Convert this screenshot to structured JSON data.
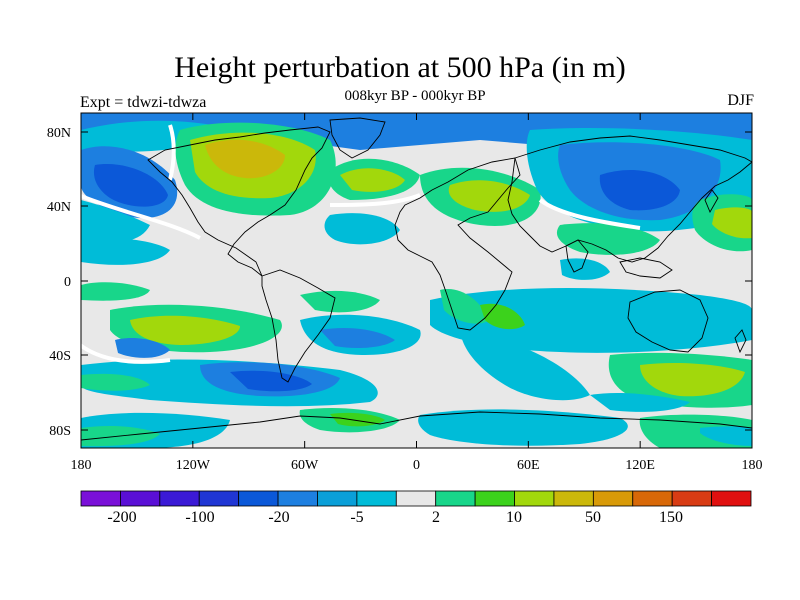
{
  "figure": {
    "title": "Height perturbation at 500 hPa (in m)",
    "subtitle": "008kyr BP - 000kyr BP",
    "left_label": "Expt = tdwzi-tdwza",
    "right_label": "DJF"
  },
  "axes": {
    "lat_labels": [
      "80N",
      "40N",
      "0",
      "40S",
      "80S"
    ],
    "lon_labels": [
      "180",
      "120W",
      "60W",
      "0",
      "60E",
      "120E",
      "180"
    ]
  },
  "colorbar": {
    "colors": [
      "#7a10d8",
      "#5a0fd6",
      "#3b1ad6",
      "#2036d4",
      "#0b58d8",
      "#1d7fe0",
      "#0a9fd8",
      "#00bcd8",
      "#e8e8e8",
      "#18d68a",
      "#3cd21c",
      "#a2d80c",
      "#cbb80a",
      "#d89a08",
      "#d86808",
      "#d83c14",
      "#e01010"
    ],
    "labels": [
      "-200",
      "-100",
      "-20",
      "-5",
      "2",
      "10",
      "50",
      "150"
    ]
  },
  "palette": {
    "background": "#e8e8e8",
    "light_blue": "#00bcd8",
    "mid_blue": "#1d7fe0",
    "dark_blue": "#0b58d8",
    "green": "#18d68a",
    "bright_green": "#3cd21c",
    "yellow_green": "#a2d80c",
    "ochre": "#cbb80a",
    "orange": "#d89a08",
    "white": "#ffffff"
  }
}
